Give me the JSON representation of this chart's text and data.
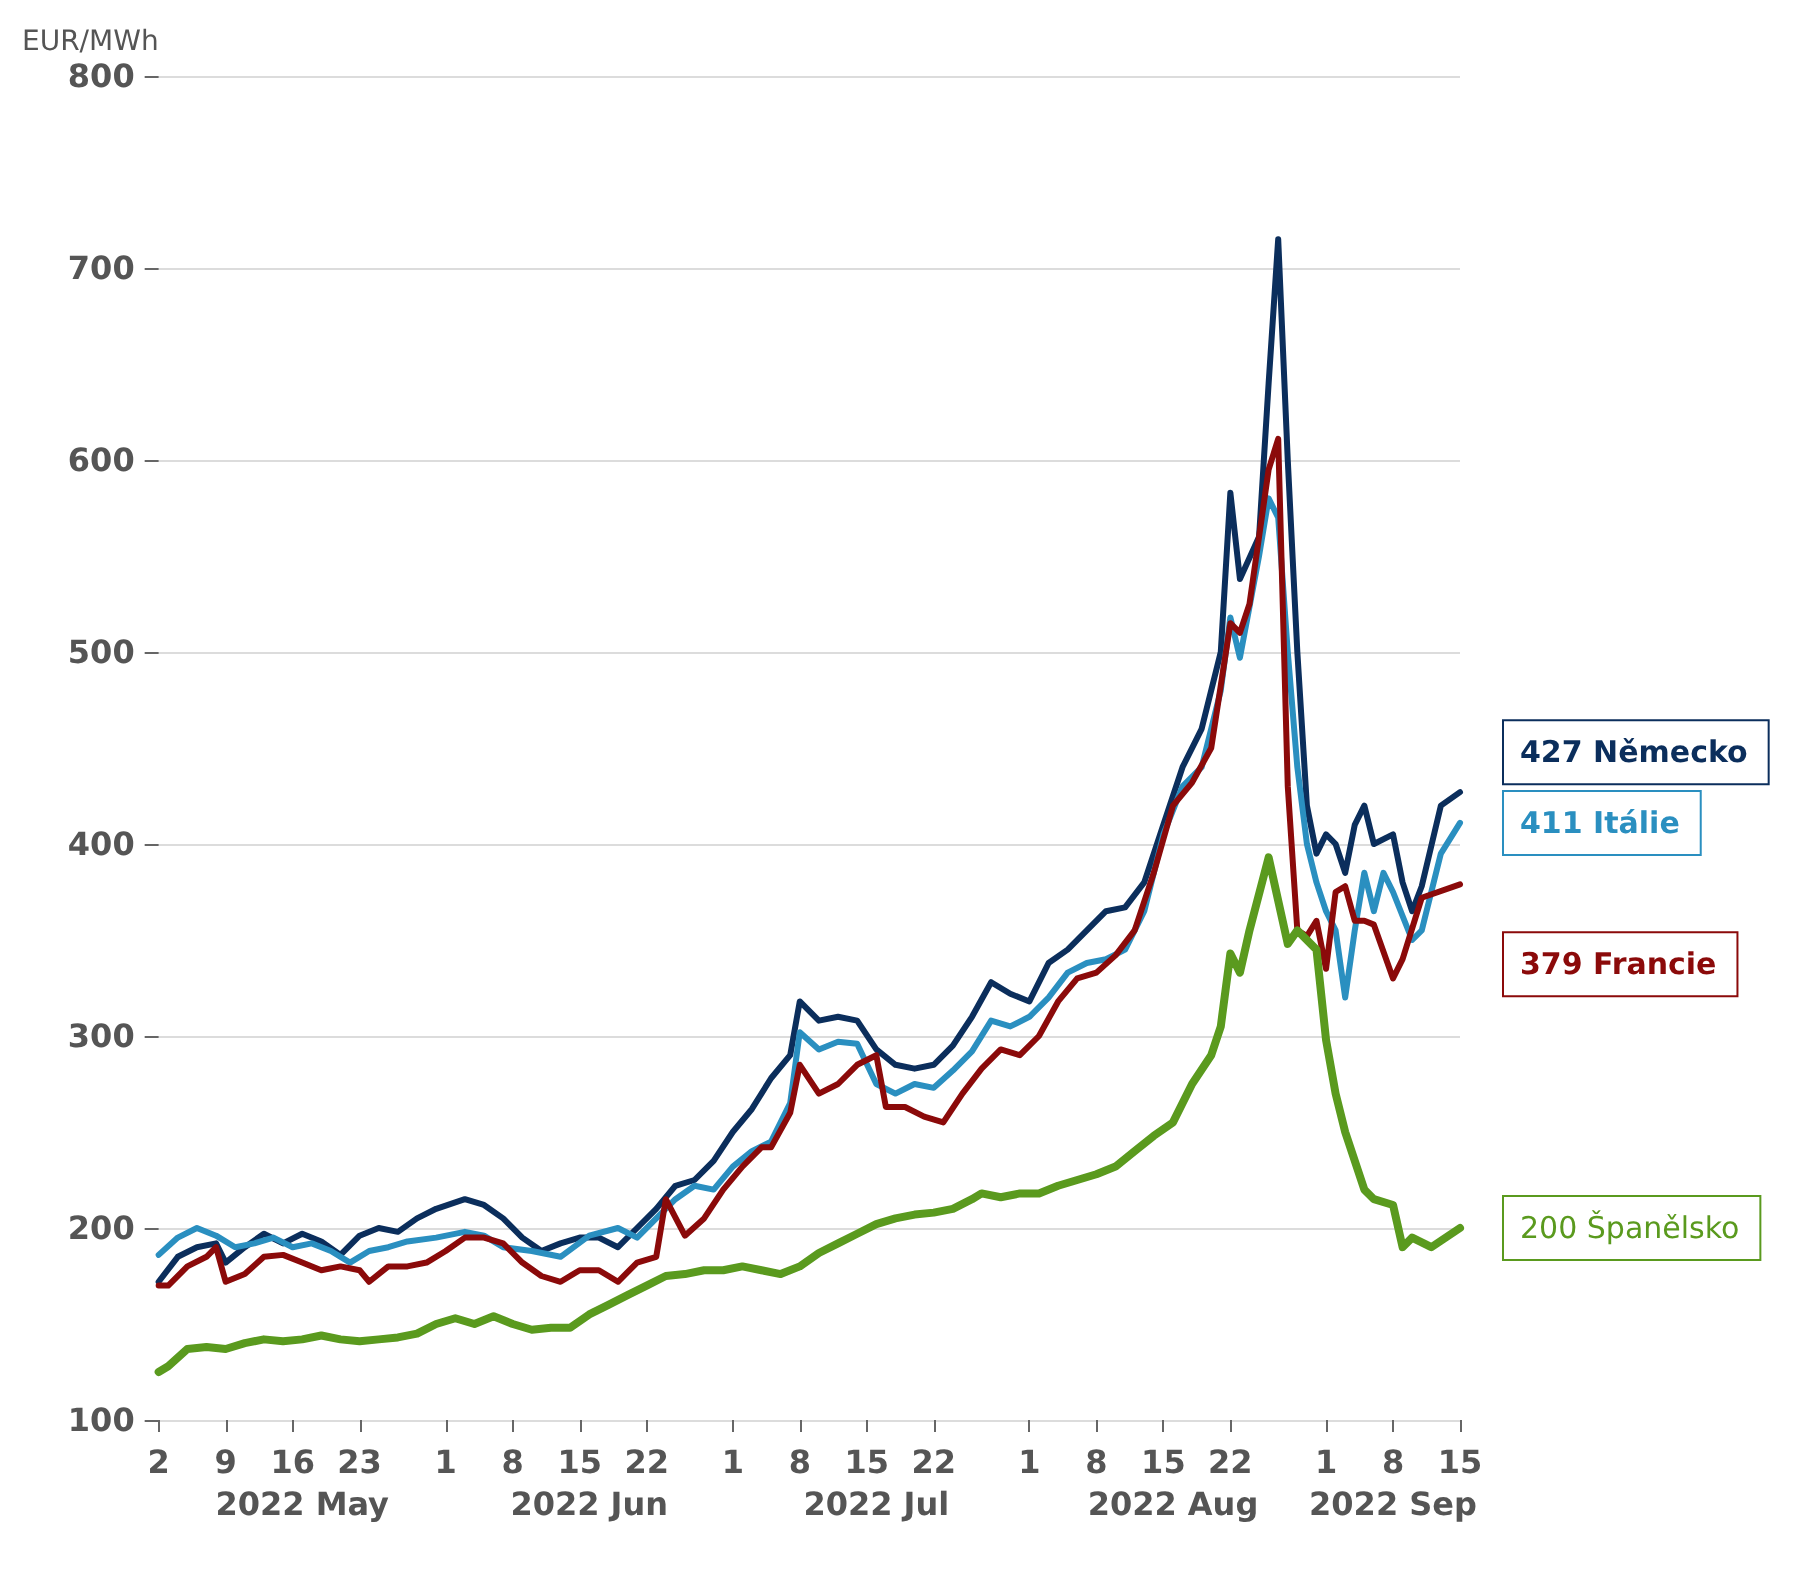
{
  "chart_data": {
    "type": "line",
    "ylabel": "EUR/MWh",
    "ylim": [
      100,
      800
    ],
    "yticks": [
      100,
      200,
      300,
      400,
      500,
      600,
      700,
      800
    ],
    "xlim": [
      "2022-05-02",
      "2022-09-15"
    ],
    "xticks": [
      {
        "value": "2022-05-02",
        "label": "2"
      },
      {
        "value": "2022-05-09",
        "label": "9"
      },
      {
        "value": "2022-05-16",
        "label": "16"
      },
      {
        "value": "2022-05-23",
        "label": "23"
      },
      {
        "value": "2022-06-01",
        "label": "1"
      },
      {
        "value": "2022-06-08",
        "label": "8"
      },
      {
        "value": "2022-06-15",
        "label": "15"
      },
      {
        "value": "2022-06-22",
        "label": "22"
      },
      {
        "value": "2022-07-01",
        "label": "1"
      },
      {
        "value": "2022-07-08",
        "label": "8"
      },
      {
        "value": "2022-07-15",
        "label": "15"
      },
      {
        "value": "2022-07-22",
        "label": "22"
      },
      {
        "value": "2022-08-01",
        "label": "1"
      },
      {
        "value": "2022-08-08",
        "label": "8"
      },
      {
        "value": "2022-08-15",
        "label": "15"
      },
      {
        "value": "2022-08-22",
        "label": "22"
      },
      {
        "value": "2022-09-01",
        "label": "1"
      },
      {
        "value": "2022-09-08",
        "label": "8"
      },
      {
        "value": "2022-09-15",
        "label": "15"
      }
    ],
    "annotations": [
      "2022 May",
      "2022 Jun",
      "2022 Jul",
      "2022 Aug",
      "2022 Sep"
    ],
    "grid": "y",
    "legend": false,
    "marker": "none",
    "line_style": "solid",
    "series": [
      {
        "name": "427 Německo",
        "color": "#0b2e5c",
        "x": [
          "2022-05-02",
          "2022-05-04",
          "2022-05-06",
          "2022-05-08",
          "2022-05-09",
          "2022-05-11",
          "2022-05-13",
          "2022-05-15",
          "2022-05-17",
          "2022-05-19",
          "2022-05-21",
          "2022-05-23",
          "2022-05-25",
          "2022-05-27",
          "2022-05-29",
          "2022-05-31",
          "2022-06-03",
          "2022-06-05",
          "2022-06-07",
          "2022-06-09",
          "2022-06-11",
          "2022-06-13",
          "2022-06-15",
          "2022-06-17",
          "2022-06-19",
          "2022-06-21",
          "2022-06-23",
          "2022-06-25",
          "2022-06-27",
          "2022-06-29",
          "2022-07-01",
          "2022-07-03",
          "2022-07-05",
          "2022-07-07",
          "2022-07-08",
          "2022-07-10",
          "2022-07-12",
          "2022-07-14",
          "2022-07-16",
          "2022-07-18",
          "2022-07-20",
          "2022-07-22",
          "2022-07-24",
          "2022-07-26",
          "2022-07-28",
          "2022-07-30",
          "2022-08-01",
          "2022-08-03",
          "2022-08-05",
          "2022-08-07",
          "2022-08-09",
          "2022-08-11",
          "2022-08-13",
          "2022-08-15",
          "2022-08-17",
          "2022-08-19",
          "2022-08-21",
          "2022-08-22",
          "2022-08-23",
          "2022-08-25",
          "2022-08-26",
          "2022-08-27",
          "2022-08-28",
          "2022-08-29",
          "2022-08-30",
          "2022-08-31",
          "2022-09-01",
          "2022-09-02",
          "2022-09-03",
          "2022-09-04",
          "2022-09-05",
          "2022-09-06",
          "2022-09-08",
          "2022-09-09",
          "2022-09-10",
          "2022-09-11",
          "2022-09-13",
          "2022-09-15"
        ],
        "values": [
          172,
          185,
          190,
          192,
          182,
          190,
          197,
          192,
          197,
          193,
          186,
          196,
          200,
          198,
          205,
          210,
          215,
          212,
          205,
          195,
          188,
          192,
          195,
          195,
          190,
          200,
          210,
          222,
          225,
          235,
          250,
          262,
          278,
          290,
          318,
          308,
          310,
          308,
          293,
          285,
          283,
          285,
          295,
          310,
          328,
          322,
          318,
          338,
          345,
          355,
          365,
          367,
          380,
          410,
          440,
          460,
          500,
          583,
          538,
          560,
          640,
          715,
          600,
          500,
          420,
          395,
          405,
          400,
          385,
          410,
          420,
          400,
          405,
          380,
          365,
          378,
          420,
          427
        ]
      },
      {
        "name": "411 Itálie",
        "color": "#2a8fc0",
        "x": [
          "2022-05-02",
          "2022-05-04",
          "2022-05-06",
          "2022-05-08",
          "2022-05-10",
          "2022-05-12",
          "2022-05-14",
          "2022-05-16",
          "2022-05-18",
          "2022-05-20",
          "2022-05-22",
          "2022-05-24",
          "2022-05-26",
          "2022-05-28",
          "2022-05-31",
          "2022-06-03",
          "2022-06-05",
          "2022-06-07",
          "2022-06-10",
          "2022-06-13",
          "2022-06-16",
          "2022-06-19",
          "2022-06-21",
          "2022-06-23",
          "2022-06-25",
          "2022-06-27",
          "2022-06-29",
          "2022-07-01",
          "2022-07-03",
          "2022-07-05",
          "2022-07-07",
          "2022-07-08",
          "2022-07-10",
          "2022-07-12",
          "2022-07-14",
          "2022-07-16",
          "2022-07-18",
          "2022-07-20",
          "2022-07-22",
          "2022-07-24",
          "2022-07-26",
          "2022-07-28",
          "2022-07-30",
          "2022-08-01",
          "2022-08-03",
          "2022-08-05",
          "2022-08-07",
          "2022-08-09",
          "2022-08-11",
          "2022-08-13",
          "2022-08-15",
          "2022-08-17",
          "2022-08-19",
          "2022-08-21",
          "2022-08-22",
          "2022-08-23",
          "2022-08-25",
          "2022-08-26",
          "2022-08-27",
          "2022-08-28",
          "2022-08-29",
          "2022-08-30",
          "2022-08-31",
          "2022-09-01",
          "2022-09-02",
          "2022-09-03",
          "2022-09-04",
          "2022-09-05",
          "2022-09-06",
          "2022-09-07",
          "2022-09-08",
          "2022-09-10",
          "2022-09-11",
          "2022-09-13",
          "2022-09-15"
        ],
        "values": [
          186,
          195,
          200,
          196,
          190,
          192,
          195,
          190,
          192,
          188,
          182,
          188,
          190,
          193,
          195,
          198,
          196,
          190,
          188,
          185,
          196,
          200,
          195,
          205,
          215,
          222,
          220,
          232,
          240,
          245,
          265,
          302,
          293,
          297,
          296,
          275,
          270,
          275,
          273,
          282,
          292,
          308,
          305,
          310,
          320,
          333,
          338,
          340,
          345,
          365,
          405,
          430,
          440,
          480,
          518,
          497,
          550,
          580,
          570,
          500,
          440,
          400,
          380,
          365,
          355,
          320,
          355,
          385,
          365,
          385,
          375,
          350,
          355,
          395,
          411
        ]
      },
      {
        "name": "379 Francie",
        "color": "#8b0a0a",
        "x": [
          "2022-05-02",
          "2022-05-03",
          "2022-05-05",
          "2022-05-07",
          "2022-05-08",
          "2022-05-09",
          "2022-05-11",
          "2022-05-13",
          "2022-05-15",
          "2022-05-17",
          "2022-05-19",
          "2022-05-21",
          "2022-05-23",
          "2022-05-24",
          "2022-05-26",
          "2022-05-28",
          "2022-05-30",
          "2022-06-01",
          "2022-06-03",
          "2022-06-05",
          "2022-06-07",
          "2022-06-09",
          "2022-06-11",
          "2022-06-13",
          "2022-06-15",
          "2022-06-17",
          "2022-06-19",
          "2022-06-21",
          "2022-06-23",
          "2022-06-24",
          "2022-06-26",
          "2022-06-28",
          "2022-06-30",
          "2022-07-02",
          "2022-07-04",
          "2022-07-05",
          "2022-07-07",
          "2022-07-08",
          "2022-07-10",
          "2022-07-12",
          "2022-07-14",
          "2022-07-16",
          "2022-07-17",
          "2022-07-19",
          "2022-07-21",
          "2022-07-23",
          "2022-07-25",
          "2022-07-27",
          "2022-07-29",
          "2022-07-31",
          "2022-08-02",
          "2022-08-04",
          "2022-08-06",
          "2022-08-08",
          "2022-08-10",
          "2022-08-12",
          "2022-08-14",
          "2022-08-16",
          "2022-08-18",
          "2022-08-20",
          "2022-08-22",
          "2022-08-23",
          "2022-08-24",
          "2022-08-26",
          "2022-08-27",
          "2022-08-28",
          "2022-08-29",
          "2022-08-30",
          "2022-08-31",
          "2022-09-01",
          "2022-09-02",
          "2022-09-03",
          "2022-09-04",
          "2022-09-05",
          "2022-09-06",
          "2022-09-08",
          "2022-09-09",
          "2022-09-11",
          "2022-09-15"
        ],
        "values": [
          170,
          170,
          180,
          185,
          190,
          172,
          176,
          185,
          186,
          182,
          178,
          180,
          178,
          172,
          180,
          180,
          182,
          188,
          195,
          195,
          192,
          182,
          175,
          172,
          178,
          178,
          172,
          182,
          185,
          215,
          196,
          205,
          220,
          232,
          242,
          242,
          260,
          285,
          270,
          275,
          285,
          290,
          263,
          263,
          258,
          255,
          270,
          283,
          293,
          290,
          300,
          318,
          330,
          333,
          342,
          355,
          385,
          420,
          432,
          450,
          515,
          510,
          525,
          595,
          611,
          430,
          355,
          352,
          360,
          335,
          375,
          378,
          360,
          360,
          358,
          330,
          340,
          372,
          379
        ]
      },
      {
        "name": "200 Španělsko",
        "color": "#5a9a1e",
        "x": [
          "2022-05-02",
          "2022-05-03",
          "2022-05-05",
          "2022-05-07",
          "2022-05-09",
          "2022-05-11",
          "2022-05-13",
          "2022-05-15",
          "2022-05-17",
          "2022-05-19",
          "2022-05-21",
          "2022-05-23",
          "2022-05-25",
          "2022-05-27",
          "2022-05-29",
          "2022-05-31",
          "2022-06-02",
          "2022-06-04",
          "2022-06-06",
          "2022-06-08",
          "2022-06-10",
          "2022-06-12",
          "2022-06-14",
          "2022-06-16",
          "2022-06-18",
          "2022-06-20",
          "2022-06-22",
          "2022-06-24",
          "2022-06-26",
          "2022-06-28",
          "2022-06-30",
          "2022-07-02",
          "2022-07-04",
          "2022-07-06",
          "2022-07-08",
          "2022-07-10",
          "2022-07-12",
          "2022-07-14",
          "2022-07-16",
          "2022-07-18",
          "2022-07-20",
          "2022-07-22",
          "2022-07-24",
          "2022-07-26",
          "2022-07-27",
          "2022-07-29",
          "2022-07-31",
          "2022-08-02",
          "2022-08-04",
          "2022-08-06",
          "2022-08-08",
          "2022-08-10",
          "2022-08-12",
          "2022-08-14",
          "2022-08-16",
          "2022-08-18",
          "2022-08-20",
          "2022-08-21",
          "2022-08-22",
          "2022-08-23",
          "2022-08-24",
          "2022-08-26",
          "2022-08-28",
          "2022-08-29",
          "2022-08-31",
          "2022-09-01",
          "2022-09-02",
          "2022-09-03",
          "2022-09-05",
          "2022-09-06",
          "2022-09-08",
          "2022-09-09",
          "2022-09-10",
          "2022-09-12",
          "2022-09-15"
        ],
        "values": [
          125,
          128,
          137,
          138,
          137,
          140,
          142,
          141,
          142,
          144,
          142,
          141,
          142,
          143,
          145,
          150,
          153,
          150,
          154,
          150,
          147,
          148,
          148,
          155,
          160,
          165,
          170,
          175,
          176,
          178,
          178,
          180,
          178,
          176,
          180,
          187,
          192,
          197,
          202,
          205,
          207,
          208,
          210,
          215,
          218,
          216,
          218,
          218,
          222,
          225,
          228,
          232,
          240,
          248,
          255,
          275,
          290,
          305,
          343,
          333,
          355,
          393,
          348,
          355,
          345,
          298,
          270,
          250,
          220,
          215,
          212,
          190,
          195,
          190,
          200
        ]
      }
    ]
  }
}
